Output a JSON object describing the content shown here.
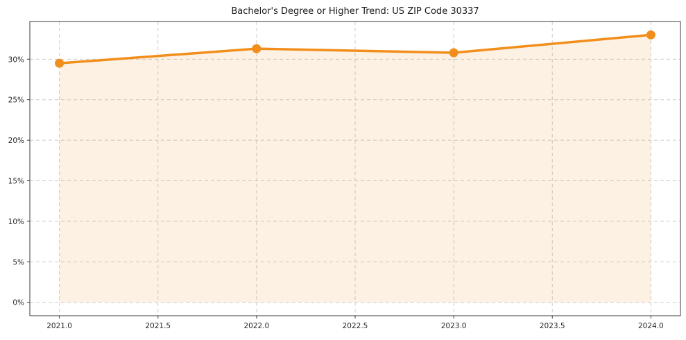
{
  "chart_data": {
    "type": "area",
    "title": "Bachelor's Degree or Higher Trend: US ZIP Code 30337",
    "x": [
      2021.0,
      2022.0,
      2023.0,
      2024.0
    ],
    "values": [
      29.5,
      31.3,
      30.8,
      33.0
    ],
    "series_name": "Bachelor's Degree or Higher (%)",
    "x_tick_values": [
      2021.0,
      2021.5,
      2022.0,
      2022.5,
      2023.0,
      2023.5,
      2024.0
    ],
    "x_tick_labels": [
      "2021.0",
      "2021.5",
      "2022.0",
      "2022.5",
      "2023.0",
      "2023.5",
      "2024.0"
    ],
    "y_tick_values": [
      0,
      5,
      10,
      15,
      20,
      25,
      30
    ],
    "y_tick_labels": [
      "0%",
      "5%",
      "10%",
      "15%",
      "20%",
      "25%",
      "30%"
    ],
    "xlim": [
      2020.85,
      2024.15
    ],
    "ylim": [
      -1.65,
      34.65
    ],
    "grid": "dashed",
    "legend_position": "none",
    "colors": {
      "line": "#f28e1c",
      "marker": "#f28e1c",
      "fill": "rgba(242, 142, 28, 0.12)",
      "grid": "#cccccc",
      "spine": "#3a3a3a",
      "text": "#262626",
      "background": "#ffffff"
    }
  }
}
